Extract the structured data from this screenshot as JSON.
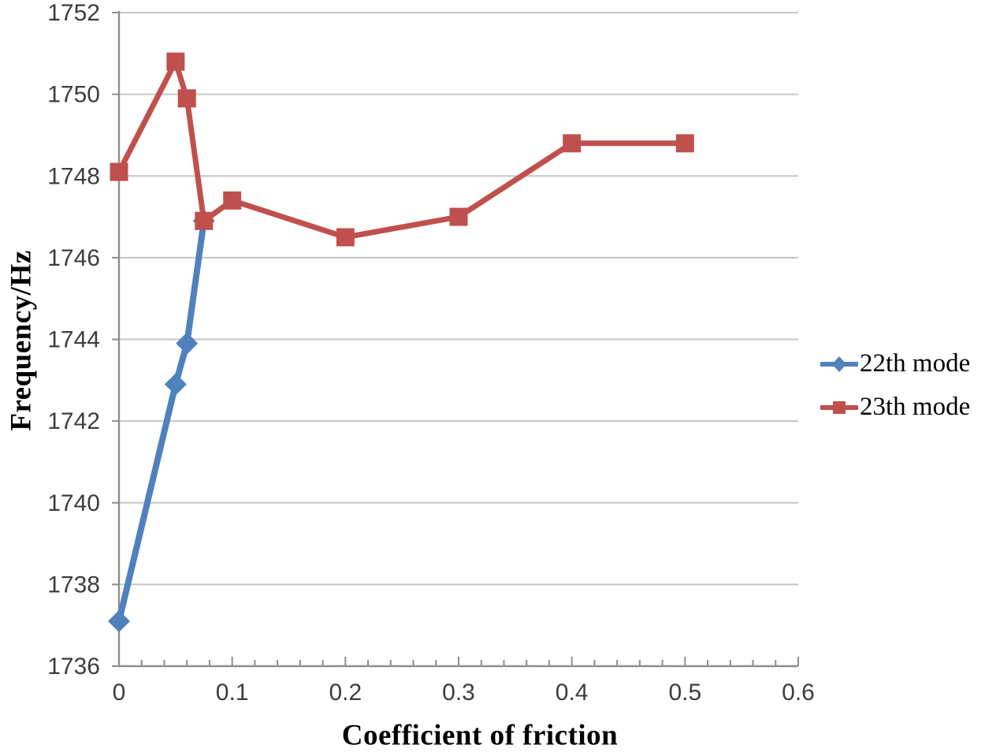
{
  "chart_data": {
    "type": "line",
    "title": "",
    "xlabel": "Coefficient of friction",
    "ylabel": "Frequency/Hz",
    "grid": "horizontal",
    "legend_position": "right-middle",
    "x_axis": {
      "min": 0,
      "max": 0.6,
      "major_tick": 0.1,
      "minor_tick": 0.02,
      "tick_labels": [
        "0",
        "0.1",
        "0.2",
        "0.3",
        "0.4",
        "0.5",
        "0.6"
      ]
    },
    "y_axis": {
      "min": 1736,
      "max": 1752,
      "major_tick": 2,
      "tick_labels": [
        "1736",
        "1738",
        "1740",
        "1742",
        "1744",
        "1746",
        "1748",
        "1750",
        "1752"
      ]
    },
    "series": [
      {
        "name": "22th mode",
        "color": "#4F81BD",
        "marker": "diamond",
        "points": [
          {
            "x": 0,
            "y": 1737.1
          },
          {
            "x": 0.05,
            "y": 1742.9
          },
          {
            "x": 0.06,
            "y": 1743.9
          },
          {
            "x": 0.075,
            "y": 1746.9
          }
        ]
      },
      {
        "name": "23th mode",
        "color": "#C0504D",
        "marker": "square",
        "points": [
          {
            "x": 0,
            "y": 1748.1
          },
          {
            "x": 0.05,
            "y": 1750.8
          },
          {
            "x": 0.06,
            "y": 1749.9
          },
          {
            "x": 0.075,
            "y": 1746.9
          },
          {
            "x": 0.1,
            "y": 1747.4
          },
          {
            "x": 0.2,
            "y": 1746.5
          },
          {
            "x": 0.3,
            "y": 1747.0
          },
          {
            "x": 0.4,
            "y": 1748.8
          },
          {
            "x": 0.5,
            "y": 1748.8
          }
        ]
      }
    ],
    "colors": {
      "grid": "#C6C6C6",
      "axis": "#8E8E8E",
      "tick_label": "#3D3D3D",
      "title_text": "#000000"
    }
  }
}
